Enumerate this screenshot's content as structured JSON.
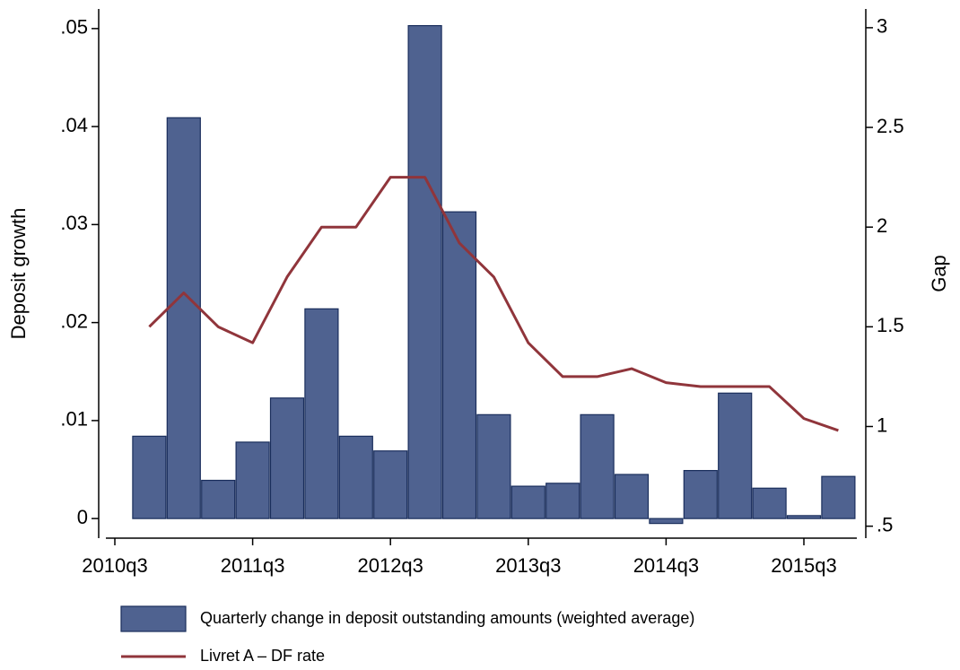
{
  "chart_data": {
    "type": "bar-line",
    "categories": [
      "2010q3",
      null,
      null,
      null,
      "2011q3",
      null,
      null,
      null,
      "2012q3",
      null,
      null,
      null,
      "2013q3",
      null,
      null,
      null,
      "2014q3",
      null,
      null,
      null,
      "2015q3",
      null
    ],
    "ylabel": "Deposit growth",
    "y2label": "Gap",
    "ylim": [
      -0.002,
      0.052
    ],
    "yticks": [
      0,
      {
        "value": 0.01,
        "label": ".01"
      },
      {
        "value": 0.02,
        "label": ".02"
      },
      {
        "value": 0.03,
        "label": ".03"
      },
      {
        "value": 0.04,
        "label": ".04"
      },
      {
        "value": 0.05,
        "label": ".05"
      }
    ],
    "y2lim": [
      0.44,
      3.094
    ],
    "y2ticks": [
      {
        "value": 0.5,
        "label": ".5"
      },
      1,
      1.5,
      2,
      2.5,
      3
    ],
    "legend": "bottom",
    "series": [
      {
        "name": "Quarterly change in deposit outstanding amounts (weighted average)",
        "type": "bar",
        "color": "#4f6290",
        "values": [
          null,
          0.0084,
          0.0409,
          0.0039,
          0.0078,
          0.0123,
          0.0214,
          0.0084,
          0.0069,
          0.0503,
          0.0313,
          0.0106,
          0.0033,
          0.0036,
          0.0106,
          0.0045,
          -0.0005,
          0.0049,
          0.0128,
          0.0031,
          0.0003,
          0.0043
        ]
      },
      {
        "name": "Livret A – DF rate",
        "type": "line",
        "axis": "y2",
        "color": "#90353b",
        "values": [
          null,
          1.5,
          1.67,
          1.5,
          1.42,
          1.75,
          2.0,
          2.0,
          2.25,
          2.25,
          1.92,
          1.75,
          1.42,
          1.25,
          1.25,
          1.29,
          1.22,
          1.2,
          1.2,
          1.2,
          1.04,
          0.98
        ]
      }
    ]
  }
}
